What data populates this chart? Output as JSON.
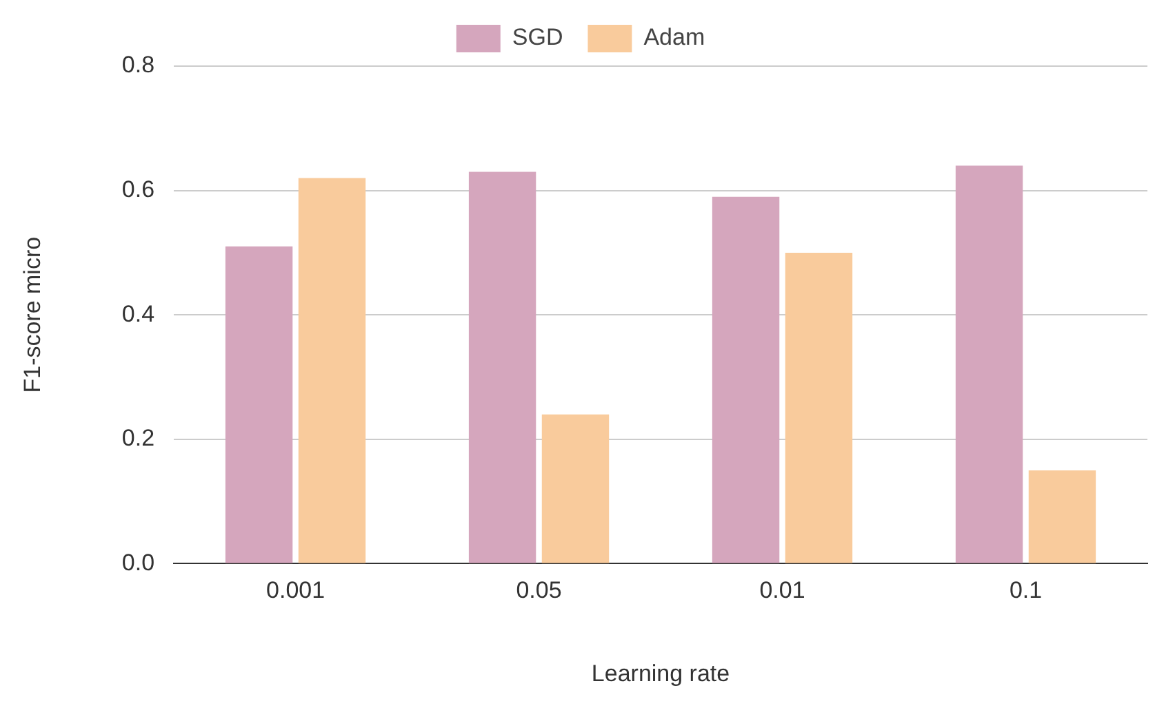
{
  "chart_data": {
    "type": "bar",
    "xlabel": "Learning rate",
    "ylabel": "F1-score micro",
    "categories": [
      "0.001",
      "0.05",
      "0.01",
      "0.1"
    ],
    "series": [
      {
        "name": "SGD",
        "color": "#d5a6bd",
        "values": [
          0.51,
          0.63,
          0.59,
          0.64
        ]
      },
      {
        "name": "Adam",
        "color": "#f9cb9c",
        "values": [
          0.62,
          0.24,
          0.5,
          0.15
        ]
      }
    ],
    "ylim": [
      0,
      0.8
    ],
    "yticks": [
      {
        "value": 0,
        "label": "0.0"
      },
      {
        "value": 0.2,
        "label": "0.2"
      },
      {
        "value": 0.4,
        "label": "0.4"
      },
      {
        "value": 0.6,
        "label": "0.6"
      },
      {
        "value": 0.8,
        "label": "0.8"
      }
    ],
    "grid": "y",
    "legend": "top"
  }
}
